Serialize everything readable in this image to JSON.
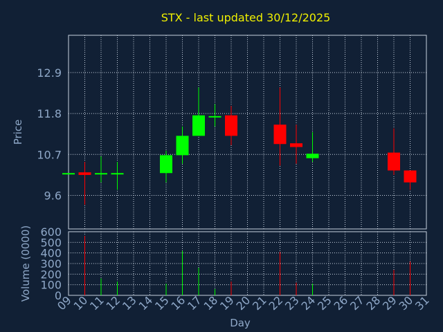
{
  "chart_data": {
    "type": "candlestick",
    "title": "STX - last updated 30/12/2025",
    "xlabel": "Day",
    "ylabel_price": "Price",
    "ylabel_volume": "Volume (0000)",
    "x_ticks": [
      "09",
      "10",
      "11",
      "12",
      "13",
      "14",
      "15",
      "16",
      "17",
      "18",
      "19",
      "20",
      "21",
      "22",
      "23",
      "24",
      "25",
      "26",
      "27",
      "28",
      "29",
      "30",
      "31"
    ],
    "price_ticks": [
      "9.6",
      "10.7",
      "11.8",
      "12.9"
    ],
    "price_ylim": [
      8.7,
      13.9
    ],
    "volume_ticks": [
      "0",
      "100",
      "200",
      "300",
      "400",
      "500",
      "600"
    ],
    "volume_ylim": [
      0,
      600
    ],
    "grid": true,
    "colors": {
      "up": "#00ff00",
      "down": "#ff0000",
      "title": "#f0f000",
      "text": "#8fa8c8",
      "background": "#112035"
    },
    "candles": [
      {
        "day": 9,
        "open": 10.2,
        "high": 10.2,
        "low": 10.2,
        "close": 10.2,
        "volume": 0
      },
      {
        "day": 10,
        "open": 10.22,
        "high": 10.5,
        "low": 9.35,
        "close": 10.15,
        "volume": 560
      },
      {
        "day": 11,
        "open": 10.18,
        "high": 10.65,
        "low": 9.95,
        "close": 10.2,
        "volume": 160
      },
      {
        "day": 12,
        "open": 10.18,
        "high": 10.5,
        "low": 9.75,
        "close": 10.2,
        "volume": 130
      },
      {
        "day": 15,
        "open": 10.2,
        "high": 10.8,
        "low": 9.95,
        "close": 10.68,
        "volume": 110
      },
      {
        "day": 16,
        "open": 10.68,
        "high": 11.45,
        "low": 10.45,
        "close": 11.2,
        "volume": 420
      },
      {
        "day": 17,
        "open": 11.2,
        "high": 12.5,
        "low": 11.2,
        "close": 11.75,
        "volume": 260
      },
      {
        "day": 18,
        "open": 11.7,
        "high": 12.05,
        "low": 11.45,
        "close": 11.73,
        "volume": 60
      },
      {
        "day": 19,
        "open": 11.75,
        "high": 12.0,
        "low": 10.95,
        "close": 11.2,
        "volume": 130
      },
      {
        "day": 22,
        "open": 11.5,
        "high": 12.5,
        "low": 10.4,
        "close": 10.98,
        "volume": 410
      },
      {
        "day": 23,
        "open": 11.0,
        "high": 11.5,
        "low": 10.45,
        "close": 10.9,
        "volume": 120
      },
      {
        "day": 24,
        "open": 10.6,
        "high": 11.3,
        "low": 10.5,
        "close": 10.72,
        "volume": 110
      },
      {
        "day": 29,
        "open": 10.75,
        "high": 11.4,
        "low": 10.15,
        "close": 10.27,
        "volume": 240
      },
      {
        "day": 30,
        "open": 10.27,
        "high": 10.27,
        "low": 9.75,
        "close": 9.95,
        "volume": 320
      }
    ]
  }
}
